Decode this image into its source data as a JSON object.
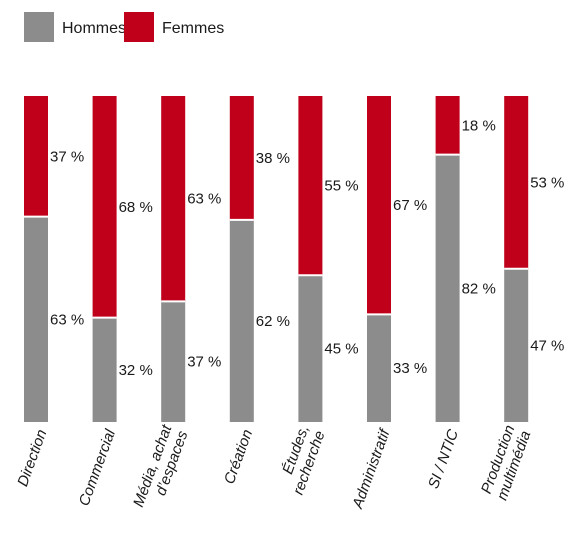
{
  "colors": {
    "hommes": "#8c8c8c",
    "femmes": "#c0001a"
  },
  "chart_data": {
    "type": "bar",
    "stacked": true,
    "percent": true,
    "legend_position": "top-left",
    "grid": false,
    "series": [
      {
        "name": "Hommes",
        "values": [
          63,
          32,
          37,
          62,
          45,
          33,
          82,
          47
        ],
        "labels": [
          "63 %",
          "32 %",
          "37 %",
          "62 %",
          "45 %",
          "33 %",
          "82 %",
          "47 %"
        ]
      },
      {
        "name": "Femmes",
        "values": [
          37,
          68,
          63,
          38,
          55,
          67,
          18,
          53
        ],
        "labels": [
          "37 %",
          "68 %",
          "63 %",
          "38 %",
          "55 %",
          "67 %",
          "18 %",
          "53 %"
        ]
      }
    ],
    "categories": [
      [
        "Direction"
      ],
      [
        "Commercial"
      ],
      [
        "Média, achat",
        "d’espaces"
      ],
      [
        "Création"
      ],
      [
        "Études,",
        "recherche"
      ],
      [
        "Administratif"
      ],
      [
        "SI / NTIC"
      ],
      [
        "Production",
        "multimédia"
      ]
    ],
    "ylim": [
      0,
      100
    ]
  }
}
